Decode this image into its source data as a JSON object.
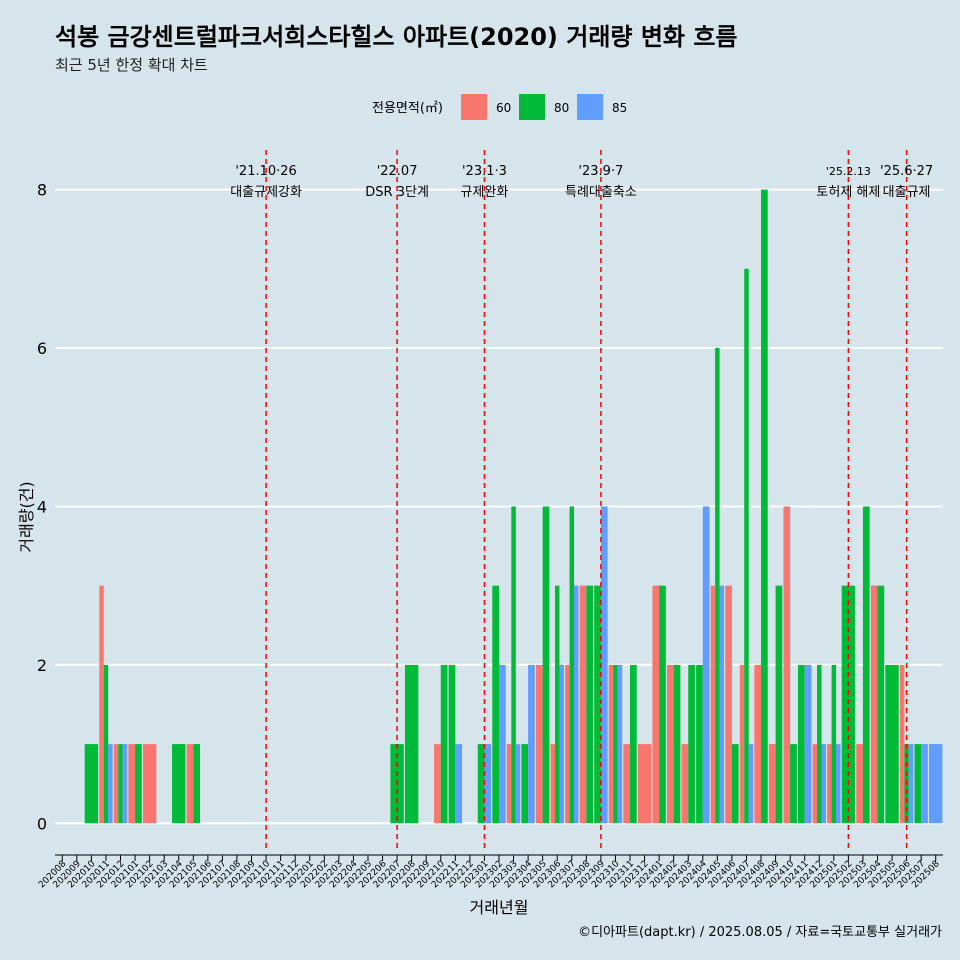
{
  "chart_data": {
    "type": "bar",
    "title": "석봉 금강센트럴파크서희스타힐스 아파트(2020) 거래량 변화 흐름",
    "subtitle": "최근 5년 한정 확대 차트",
    "xlabel": "거래년월",
    "ylabel": "거래량(건)",
    "legend_title": "전용면적(㎡)",
    "legend_position": "top",
    "caption": "©디아파트(dapt.kr) / 2025.08.05 / 자료=국토교통부 실거래가",
    "ylim": [
      -0.35,
      8.5
    ],
    "yticks": [
      0,
      2,
      4,
      6,
      8
    ],
    "grid": "horizontal",
    "categories": [
      "202008",
      "202009",
      "202010",
      "202011",
      "202012",
      "202101",
      "202102",
      "202103",
      "202104",
      "202105",
      "202106",
      "202107",
      "202108",
      "202109",
      "202110",
      "202111",
      "202112",
      "202201",
      "202202",
      "202203",
      "202204",
      "202205",
      "202206",
      "202207",
      "202208",
      "202209",
      "202210",
      "202211",
      "202212",
      "202301",
      "202302",
      "202303",
      "202304",
      "202305",
      "202306",
      "202307",
      "202308",
      "202309",
      "202310",
      "202311",
      "202312",
      "202401",
      "202402",
      "202403",
      "202404",
      "202405",
      "202406",
      "202407",
      "202408",
      "202409",
      "202410",
      "202411",
      "202412",
      "202501",
      "202502",
      "202503",
      "202504",
      "202505",
      "202506",
      "202507",
      "202508"
    ],
    "series": [
      {
        "name": "60",
        "color": "#f8766d",
        "values": [
          0,
          0,
          0,
          3,
          1,
          1,
          1,
          0,
          0,
          1,
          0,
          0,
          0,
          0,
          0,
          0,
          0,
          0,
          0,
          0,
          0,
          0,
          0,
          0,
          0,
          0,
          1,
          0,
          0,
          0,
          0,
          1,
          0,
          2,
          1,
          2,
          3,
          0,
          2,
          1,
          1,
          3,
          2,
          1,
          0,
          3,
          3,
          2,
          2,
          1,
          4,
          0,
          1,
          1,
          0,
          1,
          3,
          0,
          2,
          0,
          0
        ]
      },
      {
        "name": "80",
        "color": "#00ba38",
        "values": [
          0,
          0,
          1,
          2,
          1,
          1,
          0,
          0,
          1,
          1,
          0,
          0,
          0,
          0,
          0,
          0,
          0,
          0,
          0,
          0,
          0,
          0,
          0,
          1,
          2,
          0,
          2,
          2,
          0,
          1,
          3,
          4,
          1,
          4,
          3,
          4,
          3,
          3,
          2,
          2,
          0,
          3,
          2,
          2,
          2,
          6,
          1,
          7,
          8,
          3,
          1,
          2,
          2,
          2,
          3,
          4,
          3,
          2,
          1,
          1,
          0
        ]
      },
      {
        "name": "85",
        "color": "#619cff",
        "values": [
          0,
          0,
          0,
          1,
          1,
          0,
          0,
          0,
          0,
          0,
          0,
          0,
          0,
          0,
          0,
          0,
          0,
          0,
          0,
          0,
          0,
          0,
          0,
          0,
          0,
          0,
          0,
          1,
          0,
          1,
          2,
          1,
          2,
          0,
          2,
          3,
          0,
          4,
          2,
          0,
          0,
          0,
          0,
          0,
          4,
          3,
          0,
          1,
          0,
          0,
          0,
          2,
          1,
          1,
          0,
          0,
          0,
          0,
          1,
          1,
          1
        ]
      }
    ],
    "annotations": [
      {
        "x": "202110",
        "date": "'21.10·26",
        "label": "대출규제강화"
      },
      {
        "x": "202207",
        "date": "'22.07",
        "label": "DSR 3단계"
      },
      {
        "x": "202301",
        "date": "'23.1·3",
        "label": "규제완화"
      },
      {
        "x": "202309",
        "date": "'23.9·7",
        "label": "특례대출축소"
      },
      {
        "x": "202502",
        "date": "'25.2.13",
        "label": "토허제 해제"
      },
      {
        "x": "202506",
        "date": "'25.6·27",
        "label": "대출규제"
      }
    ],
    "annotation_color": "#ff0000"
  }
}
